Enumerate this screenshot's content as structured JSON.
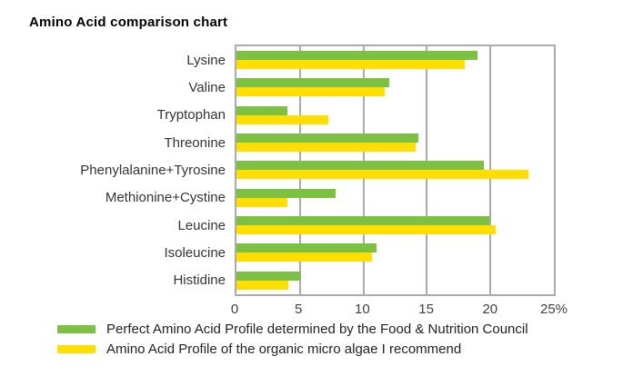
{
  "title": "Amino Acid comparison chart",
  "colors": {
    "green": "#7CC142",
    "yellow": "#FFDE00",
    "grid": "#ABABAB",
    "label_text": "#333333",
    "tick_text": "#404040"
  },
  "chart_data": {
    "type": "bar",
    "orientation": "horizontal",
    "title": "Amino Acid comparison chart",
    "categories": [
      "Lysine",
      "Valine",
      "Tryptophan",
      "Threonine",
      "Phenylalanine+Tyrosine",
      "Methionine+Cystine",
      "Leucine",
      "Isoleucine",
      "Histidine"
    ],
    "series": [
      {
        "name": "Perfect Amino Acid Profile determined by the Food & Nutrition Council",
        "color": "#7CC142",
        "values": [
          19,
          12,
          4,
          14.3,
          19.5,
          7.8,
          19.9,
          11,
          5
        ]
      },
      {
        "name": "Amino Acid Profile of the organic micro algae I recommend",
        "color": "#FFDE00",
        "values": [
          18,
          11.7,
          7.2,
          14.1,
          23,
          4,
          20.4,
          10.7,
          4.1
        ]
      }
    ],
    "xlim": [
      0,
      25
    ],
    "x_ticks": [
      {
        "value": 0,
        "label": "0"
      },
      {
        "value": 5,
        "label": "5"
      },
      {
        "value": 10,
        "label": "10"
      },
      {
        "value": 15,
        "label": "15"
      },
      {
        "value": 20,
        "label": "20"
      },
      {
        "value": 25,
        "label": "25%"
      }
    ],
    "unit": "%",
    "grid": true,
    "legend_position": "bottom"
  }
}
